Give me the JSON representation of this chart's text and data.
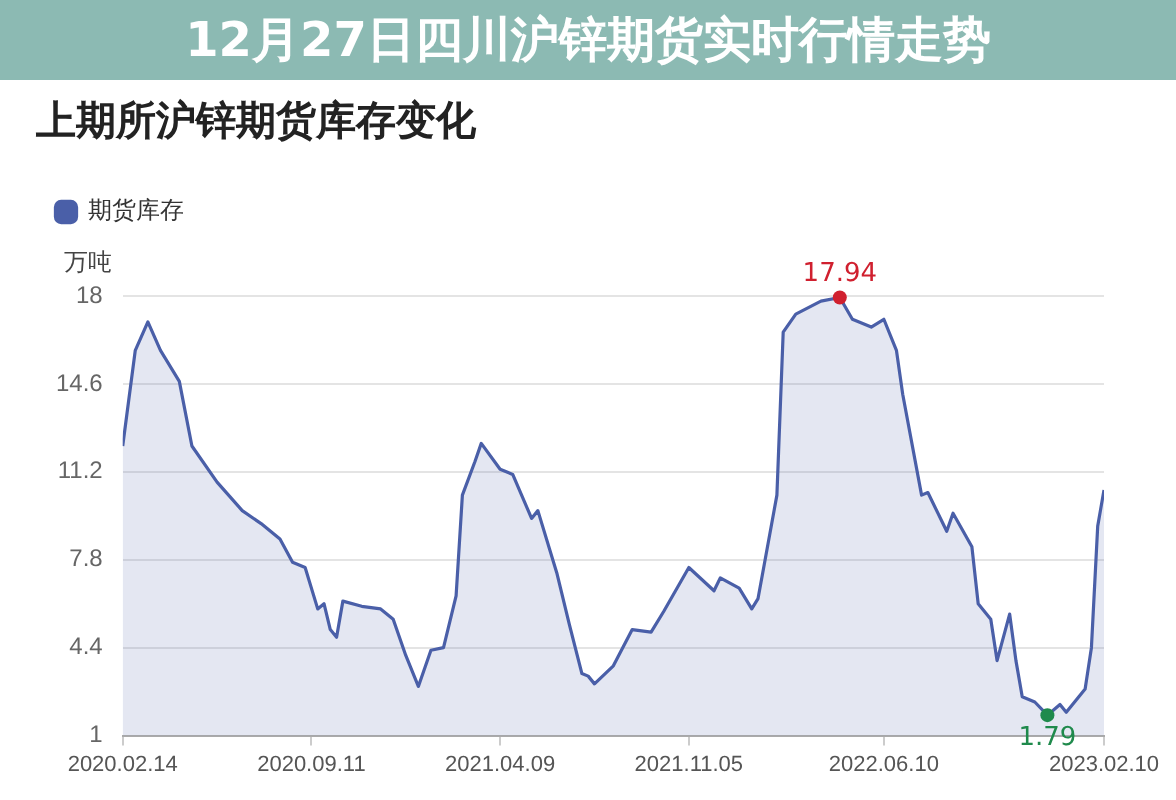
{
  "chart_data": {
    "type": "area",
    "title": "上期所沪锌期货库存变化",
    "ylabel": "万吨",
    "annotations": [
      "12月27日四川沪锌期货实时行情走势"
    ],
    "x": [
      "2020-02-14",
      "2020-02-28",
      "2020-03-13",
      "2020-03-27",
      "2020-04-17",
      "2020-05-01",
      "2020-05-29",
      "2020-06-26",
      "2020-07-17",
      "2020-08-07",
      "2020-08-21",
      "2020-09-04",
      "2020-09-18",
      "2020-09-25",
      "2020-10-02",
      "2020-10-09",
      "2020-10-16",
      "2020-11-06",
      "2020-11-27",
      "2020-12-11",
      "2020-12-25",
      "2021-01-08",
      "2021-01-22",
      "2021-02-05",
      "2021-02-19",
      "2021-02-26",
      "2021-03-12",
      "2021-03-19",
      "2021-04-09",
      "2021-04-23",
      "2021-05-14",
      "2021-05-21",
      "2021-06-11",
      "2021-06-25",
      "2021-07-09",
      "2021-07-16",
      "2021-07-23",
      "2021-08-13",
      "2021-09-03",
      "2021-09-24",
      "2021-10-08",
      "2021-11-05",
      "2021-12-03",
      "2021-12-10",
      "2021-12-31",
      "2022-01-14",
      "2022-01-21",
      "2022-02-11",
      "2022-02-18",
      "2022-03-04",
      "2022-04-01",
      "2022-04-22",
      "2022-05-06",
      "2022-05-27",
      "2022-06-10",
      "2022-06-24",
      "2022-07-01",
      "2022-07-22",
      "2022-07-29",
      "2022-08-19",
      "2022-08-26",
      "2022-09-16",
      "2022-09-23",
      "2022-10-07",
      "2022-10-14",
      "2022-10-28",
      "2022-11-04",
      "2022-11-11",
      "2022-11-25",
      "2022-12-09",
      "2022-12-23",
      "2022-12-30",
      "2023-01-20",
      "2023-01-27",
      "2023-02-03",
      "2023-02-10"
    ],
    "series": [
      {
        "name": "期货库存",
        "color": "#4a5fa8",
        "values": [
          12.2,
          15.9,
          17.0,
          15.9,
          14.7,
          12.2,
          10.8,
          9.7,
          9.2,
          8.6,
          7.7,
          7.5,
          5.9,
          6.1,
          5.1,
          4.8,
          6.2,
          6.0,
          5.9,
          5.5,
          4.1,
          2.9,
          4.3,
          4.4,
          6.4,
          10.3,
          11.6,
          12.3,
          11.3,
          11.1,
          9.4,
          9.7,
          7.3,
          5.3,
          3.4,
          3.3,
          3.0,
          3.7,
          5.1,
          5.0,
          5.8,
          7.5,
          6.6,
          7.1,
          6.7,
          5.9,
          6.3,
          10.3,
          16.6,
          17.3,
          17.8,
          17.94,
          17.1,
          16.8,
          17.1,
          15.9,
          14.2,
          10.3,
          10.4,
          8.9,
          9.6,
          8.3,
          6.1,
          5.5,
          3.9,
          5.7,
          3.9,
          2.5,
          2.3,
          1.79,
          2.2,
          1.9,
          2.8,
          4.4,
          9.1,
          10.5
        ],
        "value_labels": [
          null,
          null,
          null,
          null,
          null,
          null,
          null,
          null,
          null,
          null,
          null,
          null,
          null,
          null,
          null,
          null,
          null,
          null,
          null,
          null,
          null,
          null,
          null,
          null,
          null,
          null,
          null,
          null,
          null,
          null,
          null,
          null,
          null,
          null,
          null,
          null,
          null,
          null,
          null,
          null,
          null,
          null,
          null,
          null,
          null,
          null,
          null,
          null,
          null,
          null,
          null,
          "17.94",
          null,
          null,
          null,
          null,
          null,
          null,
          null,
          null,
          null,
          null,
          null,
          null,
          null,
          null,
          null,
          null,
          null,
          "1.79",
          null,
          null,
          null,
          null,
          null,
          null
        ]
      }
    ],
    "xlim": [
      "2020-02-14",
      "2023-02-10"
    ],
    "xticks": [
      {
        "value": "2020-02-14",
        "label": "2020.02.14"
      },
      {
        "value": "2020-09-11",
        "label": "2020.09.11"
      },
      {
        "value": "2021-04-09",
        "label": "2021.04.09"
      },
      {
        "value": "2021-11-05",
        "label": "2021.11.05"
      },
      {
        "value": "2022-06-10",
        "label": "2022.06.10"
      },
      {
        "value": "2023-02-10",
        "label": "2023.02.10"
      }
    ],
    "ylim": [
      1,
      18
    ],
    "yticks": [
      1,
      4.4,
      7.8,
      11.2,
      14.6,
      18
    ],
    "grid": "y",
    "legend": "top left",
    "marker": "none"
  }
}
